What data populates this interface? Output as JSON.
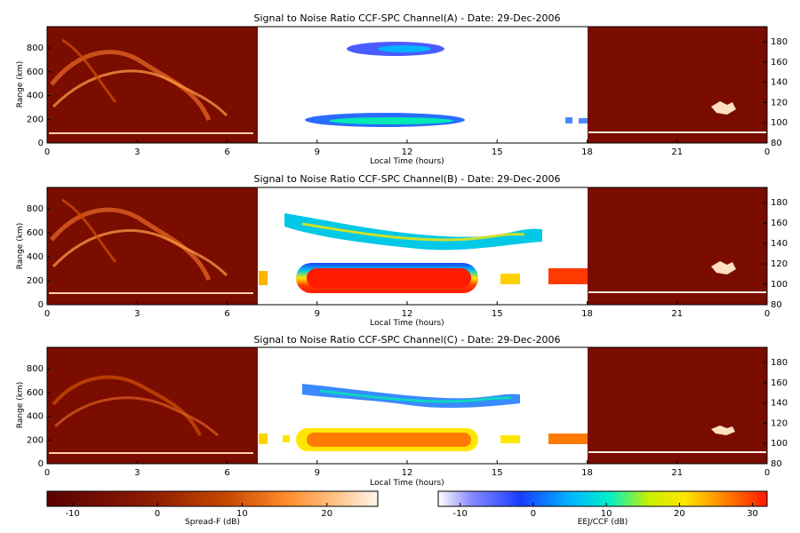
{
  "chart_data": [
    {
      "type": "heatmap",
      "title": "Signal to Noise Ratio CCF-SPC Channel(A) - Date: 29-Dec-2006",
      "xlabel": "Local Time (hours)",
      "ylabel": "Range (km)",
      "x_ticks": [
        "0",
        "3",
        "6",
        "9",
        "12",
        "15",
        "18",
        "21",
        "0"
      ],
      "y_ticks_left": [
        "0",
        "200",
        "400",
        "600",
        "800"
      ],
      "y_ticks_right": [
        "80",
        "100",
        "120",
        "140",
        "160",
        "180"
      ],
      "night_colormap": "Spread-F",
      "day_colormap": "EEJ/CCF",
      "day_interval_hours": [
        7,
        18
      ]
    },
    {
      "type": "heatmap",
      "title": "Signal to Noise Ratio CCF-SPC Channel(B) - Date: 29-Dec-2006",
      "xlabel": "Local Time (hours)",
      "ylabel": "Range (km)",
      "x_ticks": [
        "0",
        "3",
        "6",
        "9",
        "12",
        "15",
        "18",
        "21",
        "0"
      ],
      "y_ticks_left": [
        "0",
        "200",
        "400",
        "600",
        "800"
      ],
      "y_ticks_right": [
        "80",
        "100",
        "120",
        "140",
        "160",
        "180"
      ],
      "night_colormap": "Spread-F",
      "day_colormap": "EEJ/CCF",
      "day_interval_hours": [
        7,
        18
      ]
    },
    {
      "type": "heatmap",
      "title": "Signal to Noise Ratio CCF-SPC Channel(C) - Date: 29-Dec-2006",
      "xlabel": "Local Time (hours)",
      "ylabel": "Range (km)",
      "x_ticks": [
        "0",
        "3",
        "6",
        "9",
        "12",
        "15",
        "18",
        "21",
        "0"
      ],
      "y_ticks_left": [
        "0",
        "200",
        "400",
        "600",
        "800"
      ],
      "y_ticks_right": [
        "80",
        "100",
        "120",
        "140",
        "160",
        "180"
      ],
      "night_colormap": "Spread-F",
      "day_colormap": "EEJ/CCF",
      "day_interval_hours": [
        7,
        18
      ]
    }
  ],
  "colorbars": [
    {
      "label": "Spread-F (dB)",
      "ticks": [
        "-10",
        "0",
        "10",
        "20"
      ],
      "range": [
        -13,
        26
      ],
      "colors": [
        "#5a0000",
        "#8b1a00",
        "#c84a00",
        "#ff8a2a",
        "#ffc68a",
        "#fff6ec"
      ]
    },
    {
      "label": "EEJ/CCF (dB)",
      "ticks": [
        "-10",
        "0",
        "10",
        "20",
        "30"
      ],
      "range": [
        -13,
        32
      ],
      "colors": [
        "#ffffff",
        "#8a8aff",
        "#1a3cff",
        "#00b4ff",
        "#00f0c8",
        "#c8f000",
        "#ffe600",
        "#ff7a00",
        "#ff1a00"
      ]
    }
  ]
}
